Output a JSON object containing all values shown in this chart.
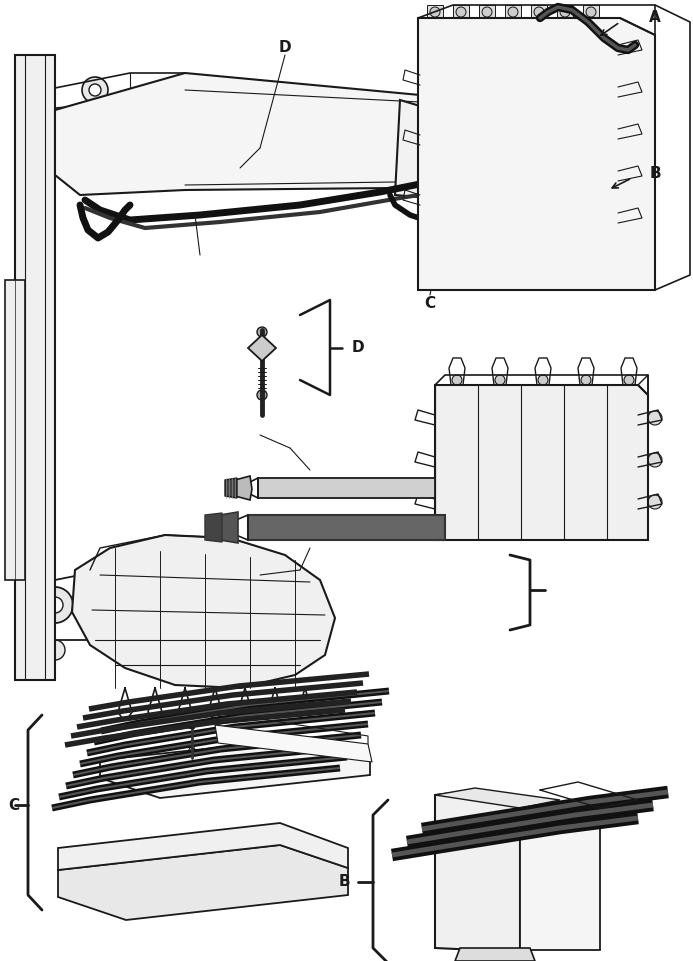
{
  "bg_color": "#ffffff",
  "line_color": "#1a1a1a",
  "label_A": "A",
  "label_B": "B",
  "label_C": "C",
  "label_D": "D",
  "figsize": [
    6.93,
    9.61
  ],
  "dpi": 100
}
